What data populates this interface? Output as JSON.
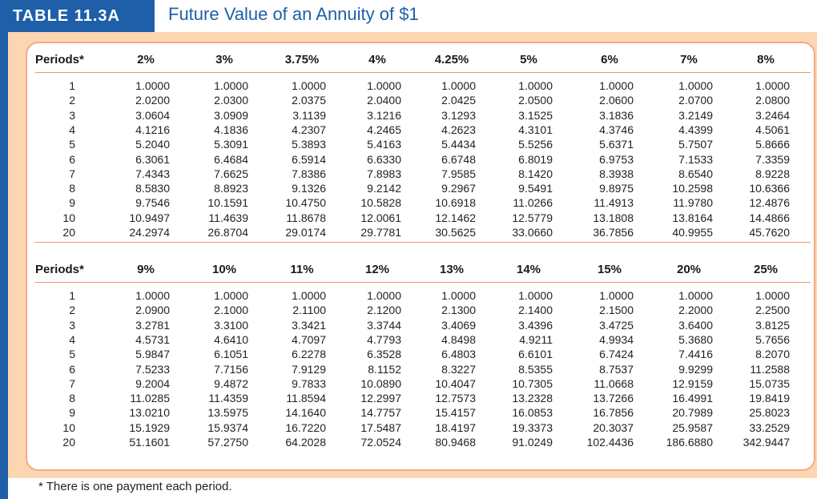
{
  "label": "TABLE 11.3A",
  "title": "Future Value of an Annuity of $1",
  "footnote": "* There is one payment each period.",
  "colors": {
    "blue": "#1f5fa8",
    "peach": "#fcd6b3",
    "accent": "#f29470"
  },
  "sections": [
    {
      "periods_label": "Periods*",
      "rates": [
        "2%",
        "3%",
        "3.75%",
        "4%",
        "4.25%",
        "5%",
        "6%",
        "7%",
        "8%"
      ],
      "rows": [
        {
          "period": "1",
          "values": [
            "1.0000",
            "1.0000",
            "1.0000",
            "1.0000",
            "1.0000",
            "1.0000",
            "1.0000",
            "1.0000",
            "1.0000"
          ]
        },
        {
          "period": "2",
          "values": [
            "2.0200",
            "2.0300",
            "2.0375",
            "2.0400",
            "2.0425",
            "2.0500",
            "2.0600",
            "2.0700",
            "2.0800"
          ]
        },
        {
          "period": "3",
          "values": [
            "3.0604",
            "3.0909",
            "3.1139",
            "3.1216",
            "3.1293",
            "3.1525",
            "3.1836",
            "3.2149",
            "3.2464"
          ]
        },
        {
          "period": "4",
          "values": [
            "4.1216",
            "4.1836",
            "4.2307",
            "4.2465",
            "4.2623",
            "4.3101",
            "4.3746",
            "4.4399",
            "4.5061"
          ]
        },
        {
          "period": "5",
          "values": [
            "5.2040",
            "5.3091",
            "5.3893",
            "5.4163",
            "5.4434",
            "5.5256",
            "5.6371",
            "5.7507",
            "5.8666"
          ]
        },
        {
          "period": "6",
          "values": [
            "6.3061",
            "6.4684",
            "6.5914",
            "6.6330",
            "6.6748",
            "6.8019",
            "6.9753",
            "7.1533",
            "7.3359"
          ]
        },
        {
          "period": "7",
          "values": [
            "7.4343",
            "7.6625",
            "7.8386",
            "7.8983",
            "7.9585",
            "8.1420",
            "8.3938",
            "8.6540",
            "8.9228"
          ]
        },
        {
          "period": "8",
          "values": [
            "8.5830",
            "8.8923",
            "9.1326",
            "9.2142",
            "9.2967",
            "9.5491",
            "9.8975",
            "10.2598",
            "10.6366"
          ]
        },
        {
          "period": "9",
          "values": [
            "9.7546",
            "10.1591",
            "10.4750",
            "10.5828",
            "10.6918",
            "11.0266",
            "11.4913",
            "11.9780",
            "12.4876"
          ]
        },
        {
          "period": "10",
          "values": [
            "10.9497",
            "11.4639",
            "11.8678",
            "12.0061",
            "12.1462",
            "12.5779",
            "13.1808",
            "13.8164",
            "14.4866"
          ]
        },
        {
          "period": "20",
          "values": [
            "24.2974",
            "26.8704",
            "29.0174",
            "29.7781",
            "30.5625",
            "33.0660",
            "36.7856",
            "40.9955",
            "45.7620"
          ]
        }
      ]
    },
    {
      "periods_label": "Periods*",
      "rates": [
        "9%",
        "10%",
        "11%",
        "12%",
        "13%",
        "14%",
        "15%",
        "20%",
        "25%"
      ],
      "rows": [
        {
          "period": "1",
          "values": [
            "1.0000",
            "1.0000",
            "1.0000",
            "1.0000",
            "1.0000",
            "1.0000",
            "1.0000",
            "1.0000",
            "1.0000"
          ]
        },
        {
          "period": "2",
          "values": [
            "2.0900",
            "2.1000",
            "2.1100",
            "2.1200",
            "2.1300",
            "2.1400",
            "2.1500",
            "2.2000",
            "2.2500"
          ]
        },
        {
          "period": "3",
          "values": [
            "3.2781",
            "3.3100",
            "3.3421",
            "3.3744",
            "3.4069",
            "3.4396",
            "3.4725",
            "3.6400",
            "3.8125"
          ]
        },
        {
          "period": "4",
          "values": [
            "4.5731",
            "4.6410",
            "4.7097",
            "4.7793",
            "4.8498",
            "4.9211",
            "4.9934",
            "5.3680",
            "5.7656"
          ]
        },
        {
          "period": "5",
          "values": [
            "5.9847",
            "6.1051",
            "6.2278",
            "6.3528",
            "6.4803",
            "6.6101",
            "6.7424",
            "7.4416",
            "8.2070"
          ]
        },
        {
          "period": "6",
          "values": [
            "7.5233",
            "7.7156",
            "7.9129",
            "8.1152",
            "8.3227",
            "8.5355",
            "8.7537",
            "9.9299",
            "11.2588"
          ]
        },
        {
          "period": "7",
          "values": [
            "9.2004",
            "9.4872",
            "9.7833",
            "10.0890",
            "10.4047",
            "10.7305",
            "11.0668",
            "12.9159",
            "15.0735"
          ]
        },
        {
          "period": "8",
          "values": [
            "11.0285",
            "11.4359",
            "11.8594",
            "12.2997",
            "12.7573",
            "13.2328",
            "13.7266",
            "16.4991",
            "19.8419"
          ]
        },
        {
          "period": "9",
          "values": [
            "13.0210",
            "13.5975",
            "14.1640",
            "14.7757",
            "15.4157",
            "16.0853",
            "16.7856",
            "20.7989",
            "25.8023"
          ]
        },
        {
          "period": "10",
          "values": [
            "15.1929",
            "15.9374",
            "16.7220",
            "17.5487",
            "18.4197",
            "19.3373",
            "20.3037",
            "25.9587",
            "33.2529"
          ]
        },
        {
          "period": "20",
          "values": [
            "51.1601",
            "57.2750",
            "64.2028",
            "72.0524",
            "80.9468",
            "91.0249",
            "102.4436",
            "186.6880",
            "342.9447"
          ]
        }
      ]
    }
  ]
}
